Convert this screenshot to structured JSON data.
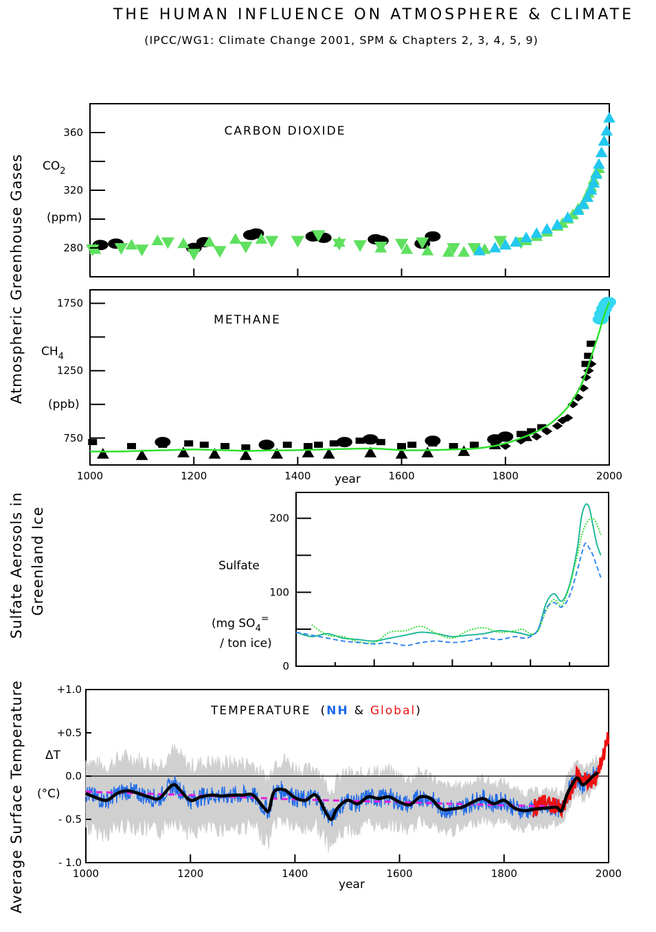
{
  "title": "THE HUMAN INFLUENCE ON ATMOSPHERE & CLIMATE",
  "subtitle": "(IPCC/WG1: Climate Change 2001, SPM & Chapters 2, 3, 4, 5, 9)",
  "side_labels": {
    "greenhouse": "Atmospheric Greenhouse Gases",
    "aerosol_line1": "Sulfate Aerosols in",
    "aerosol_line2": "Greenland Ice",
    "temperature": "Average Surface Temperature"
  },
  "year_label": "year",
  "colors": {
    "co2_ice": "#000000",
    "co2_green": "#5fe05f",
    "co2_direct": "#22c8f0",
    "ch4_fit": "#2ee02e",
    "sulfate_teal": "#1fb898",
    "sulfate_green": "#33dd33",
    "sulfate_blue": "#3388ee",
    "nh_blue": "#1f6be8",
    "global_red": "#ee1111",
    "smooth_black": "#000000",
    "trend_magenta": "#e020e0",
    "uncertainty_gray": "#d0d0d0"
  },
  "chart_data": [
    {
      "id": "co2",
      "type": "scatter",
      "title": "CARBON DIOXIDE",
      "ylabel_gas": "CO",
      "ylabel_sub": "2",
      "ylabel_unit": "(ppm)",
      "xlim": [
        1000,
        2000
      ],
      "ylim": [
        260,
        380
      ],
      "yticks": [
        280,
        320,
        360
      ],
      "ytick_labels": [
        "280",
        "320",
        "360"
      ],
      "series": [
        {
          "marker": "ellipse",
          "color": "#000000",
          "x": [
            1020,
            1050,
            1200,
            1220,
            1310,
            1320,
            1430,
            1450,
            1550,
            1560,
            1640,
            1660
          ],
          "y": [
            282,
            283,
            280,
            284,
            289,
            290,
            288,
            287,
            286,
            285,
            283,
            288
          ]
        },
        {
          "marker": "triangle-down",
          "color": "#5fe05f",
          "x": [
            1005,
            1060,
            1100,
            1150,
            1200,
            1250,
            1300,
            1350,
            1400,
            1440,
            1480,
            1520,
            1560,
            1600,
            1640,
            1700,
            1740,
            1790,
            1830
          ],
          "y": [
            279,
            280,
            279,
            284,
            276,
            278,
            281,
            285,
            285,
            289,
            283,
            282,
            281,
            283,
            284,
            280,
            280,
            285,
            284
          ]
        },
        {
          "marker": "triangle-up",
          "color": "#5fe05f",
          "x": [
            1010,
            1080,
            1130,
            1180,
            1230,
            1280,
            1330,
            1480,
            1560,
            1610,
            1650,
            1690,
            1720,
            1760,
            1800,
            1840,
            1860,
            1880,
            1900,
            1910,
            1920,
            1930,
            1940,
            1950,
            1960,
            1965,
            1970,
            1975,
            1980
          ],
          "y": [
            279,
            282,
            285,
            283,
            284,
            286,
            286,
            284,
            280,
            279,
            278,
            277,
            277,
            279,
            282,
            285,
            288,
            291,
            295,
            297,
            300,
            303,
            307,
            311,
            318,
            322,
            327,
            332,
            335
          ]
        },
        {
          "marker": "triangle-up",
          "color": "#22c8f0",
          "x": [
            1750,
            1780,
            1800,
            1820,
            1840,
            1860,
            1880,
            1900,
            1920,
            1940,
            1950,
            1958,
            1965,
            1970,
            1975,
            1980,
            1985,
            1990,
            1995,
            2000
          ],
          "y": [
            278,
            280,
            282,
            284,
            287,
            290,
            293,
            296,
            301,
            306,
            310,
            315,
            320,
            325,
            331,
            338,
            346,
            354,
            361,
            370
          ]
        }
      ]
    },
    {
      "id": "ch4",
      "type": "scatter",
      "title": "METHANE",
      "ylabel_gas": "CH",
      "ylabel_sub": "4",
      "ylabel_unit": "(ppb)",
      "xlim": [
        1000,
        2000
      ],
      "ylim": [
        550,
        1850
      ],
      "yticks": [
        750,
        1250,
        1750
      ],
      "ytick_labels": [
        "750",
        "1250",
        "1750"
      ],
      "x_label": "year",
      "xticks": [
        1000,
        1200,
        1400,
        1600,
        1800,
        2000
      ],
      "xtick_labels": [
        "1000",
        "1200",
        "1400",
        "1600",
        "1800",
        "2000"
      ],
      "series": [
        {
          "marker": "square",
          "color": "#000000",
          "x": [
            1005,
            1080,
            1140,
            1190,
            1220,
            1260,
            1300,
            1340,
            1380,
            1420,
            1440,
            1470,
            1520,
            1560,
            1600,
            1620,
            1660,
            1700,
            1740,
            1780,
            1800,
            1830,
            1850,
            1870
          ],
          "y": [
            720,
            690,
            700,
            710,
            700,
            690,
            680,
            690,
            700,
            690,
            700,
            710,
            730,
            720,
            690,
            700,
            710,
            690,
            700,
            720,
            760,
            780,
            800,
            830
          ]
        },
        {
          "marker": "triangle-up",
          "color": "#000000",
          "x": [
            1025,
            1100,
            1180,
            1240,
            1300,
            1360,
            1420,
            1460,
            1540,
            1600,
            1650,
            1720,
            1780,
            1840
          ],
          "y": [
            630,
            620,
            640,
            630,
            620,
            630,
            640,
            630,
            640,
            630,
            640,
            650,
            700,
            760
          ]
        },
        {
          "marker": "ellipse",
          "color": "#000000",
          "x": [
            1140,
            1340,
            1490,
            1540,
            1660,
            1780,
            1800
          ],
          "y": [
            720,
            700,
            720,
            740,
            730,
            740,
            760
          ]
        },
        {
          "marker": "diamond",
          "color": "#000000",
          "x": [
            1800,
            1830,
            1860,
            1880,
            1900,
            1910,
            1920,
            1930,
            1940,
            1950,
            1955,
            1960,
            1965
          ],
          "y": [
            690,
            730,
            760,
            800,
            840,
            880,
            900,
            1000,
            1050,
            1120,
            1200,
            1250,
            1300
          ]
        },
        {
          "marker": "square",
          "color": "#000000",
          "x": [
            1955,
            1960,
            1965
          ],
          "y": [
            1300,
            1360,
            1450
          ]
        },
        {
          "marker": "ellipse",
          "color": "#33d8f0",
          "x": [
            1983,
            1986,
            1990,
            1994,
            1998
          ],
          "y": [
            1630,
            1670,
            1710,
            1740,
            1760
          ]
        },
        {
          "type": "line",
          "color": "#2ee02e",
          "x": [
            1000,
            1050,
            1100,
            1150,
            1200,
            1250,
            1300,
            1350,
            1400,
            1450,
            1500,
            1550,
            1600,
            1650,
            1700,
            1750,
            1800,
            1850,
            1880,
            1900,
            1920,
            1940,
            1950,
            1960,
            1970,
            1980,
            1990,
            2000
          ],
          "y": [
            650,
            650,
            655,
            660,
            665,
            660,
            655,
            658,
            660,
            665,
            670,
            672,
            660,
            660,
            665,
            675,
            710,
            780,
            840,
            900,
            980,
            1100,
            1180,
            1290,
            1410,
            1530,
            1660,
            1760
          ]
        }
      ]
    },
    {
      "id": "sulfate",
      "type": "line",
      "ylabel_line1": "Sulfate",
      "ylabel_unit_prefix": "(mg SO",
      "ylabel_unit_sub": "4",
      "ylabel_unit_sup": "=",
      "ylabel_unit_line2": "/ ton ice)",
      "xlim": [
        1600,
        2000
      ],
      "ylim": [
        0,
        235
      ],
      "yticks": [
        0,
        100,
        200
      ],
      "ytick_labels": [
        "0",
        "100",
        "200"
      ],
      "series": [
        {
          "color": "#1fb898",
          "x": [
            1600,
            1620,
            1640,
            1660,
            1680,
            1700,
            1720,
            1740,
            1760,
            1780,
            1800,
            1820,
            1840,
            1860,
            1880,
            1890,
            1900,
            1910,
            1920,
            1930,
            1940,
            1950,
            1960,
            1965,
            1970,
            1975,
            1980,
            1985,
            1990
          ],
          "y": [
            46,
            40,
            44,
            38,
            36,
            34,
            38,
            42,
            46,
            44,
            40,
            42,
            44,
            48,
            46,
            44,
            42,
            50,
            85,
            98,
            88,
            110,
            160,
            200,
            218,
            215,
            190,
            165,
            150
          ]
        },
        {
          "color": "#33dd33",
          "dash": "dotted",
          "x": [
            1620,
            1640,
            1660,
            1680,
            1700,
            1720,
            1740,
            1760,
            1780,
            1800,
            1820,
            1840,
            1860,
            1880,
            1890,
            1900,
            1910,
            1920,
            1930,
            1940,
            1950,
            1960,
            1965,
            1970,
            1975,
            1980,
            1985,
            1990
          ],
          "y": [
            56,
            42,
            40,
            33,
            32,
            46,
            48,
            54,
            44,
            38,
            48,
            52,
            46,
            48,
            50,
            44,
            48,
            75,
            90,
            82,
            108,
            150,
            175,
            190,
            198,
            200,
            192,
            178
          ]
        },
        {
          "color": "#3388ee",
          "dash": "dashed",
          "x": [
            1600,
            1620,
            1640,
            1660,
            1680,
            1700,
            1720,
            1740,
            1760,
            1780,
            1800,
            1820,
            1840,
            1860,
            1880,
            1890,
            1900,
            1910,
            1920,
            1930,
            1940,
            1950,
            1960,
            1965,
            1970,
            1975,
            1980,
            1985,
            1990
          ],
          "y": [
            46,
            42,
            38,
            34,
            32,
            30,
            32,
            28,
            32,
            34,
            32,
            34,
            38,
            36,
            40,
            38,
            40,
            50,
            78,
            86,
            80,
            95,
            130,
            150,
            166,
            160,
            150,
            135,
            120
          ]
        }
      ]
    },
    {
      "id": "temperature",
      "type": "line",
      "title": "TEMPERATURE",
      "title_paren_open": "(",
      "title_nh": "NH",
      "title_amp": "&",
      "title_global": "Global",
      "title_paren_close": ")",
      "ylabel": "ΔT",
      "ylabel_unit": "(°C)",
      "x_label": "year",
      "xlim": [
        1000,
        2000
      ],
      "ylim": [
        -1.0,
        1.0
      ],
      "yticks": [
        -1.0,
        -0.5,
        0.0,
        0.5,
        1.0
      ],
      "ytick_labels": [
        "- 1.0",
        "- 0.5",
        "0.0",
        "+0.5",
        "+1.0"
      ],
      "xticks": [
        1000,
        1200,
        1400,
        1600,
        1800,
        2000
      ],
      "xtick_labels": [
        "1000",
        "1200",
        "1400",
        "1600",
        "1800",
        "2000"
      ],
      "smoothed_nh": {
        "color": "#000000",
        "x": [
          1000,
          1020,
          1040,
          1060,
          1080,
          1100,
          1120,
          1140,
          1160,
          1170,
          1180,
          1200,
          1220,
          1240,
          1260,
          1280,
          1300,
          1320,
          1340,
          1350,
          1360,
          1380,
          1400,
          1420,
          1440,
          1460,
          1470,
          1480,
          1500,
          1520,
          1540,
          1560,
          1580,
          1600,
          1620,
          1640,
          1660,
          1680,
          1700,
          1720,
          1740,
          1760,
          1780,
          1800,
          1820,
          1840,
          1860,
          1880,
          1900,
          1910,
          1920,
          1930,
          1940,
          1950,
          1960,
          1970,
          1980
        ],
        "y": [
          -0.2,
          -0.25,
          -0.28,
          -0.2,
          -0.17,
          -0.2,
          -0.24,
          -0.26,
          -0.13,
          -0.1,
          -0.16,
          -0.28,
          -0.24,
          -0.22,
          -0.23,
          -0.22,
          -0.22,
          -0.22,
          -0.36,
          -0.4,
          -0.18,
          -0.16,
          -0.25,
          -0.28,
          -0.22,
          -0.43,
          -0.5,
          -0.38,
          -0.28,
          -0.32,
          -0.24,
          -0.26,
          -0.24,
          -0.3,
          -0.33,
          -0.24,
          -0.26,
          -0.38,
          -0.38,
          -0.36,
          -0.3,
          -0.26,
          -0.32,
          -0.28,
          -0.37,
          -0.4,
          -0.38,
          -0.37,
          -0.36,
          -0.4,
          -0.22,
          -0.1,
          -0.02,
          -0.1,
          -0.06,
          0.0,
          0.04
        ]
      },
      "trend": {
        "color": "#e020e0",
        "dash": "dashed",
        "x": [
          1000,
          1200,
          1400,
          1600,
          1800,
          1900
        ],
        "y": [
          -0.18,
          -0.22,
          -0.27,
          -0.3,
          -0.34,
          -0.35
        ]
      },
      "global_instrumental": {
        "color": "#ee1111",
        "x": [
          1856,
          1870,
          1880,
          1890,
          1900,
          1910,
          1920,
          1930,
          1940,
          1950,
          1960,
          1970,
          1980,
          1990,
          2000
        ],
        "y": [
          -0.38,
          -0.3,
          -0.3,
          -0.35,
          -0.33,
          -0.42,
          -0.28,
          -0.15,
          0.02,
          -0.03,
          -0.05,
          -0.1,
          0.05,
          0.25,
          0.45
        ]
      },
      "uncertainty_range": {
        "color": "#d0d0d0",
        "half_width": [
          0.45,
          0.45,
          0.4,
          0.35,
          0.25,
          0.2
        ],
        "x": [
          1000,
          1200,
          1400,
          1600,
          1800,
          1980
        ]
      }
    }
  ]
}
